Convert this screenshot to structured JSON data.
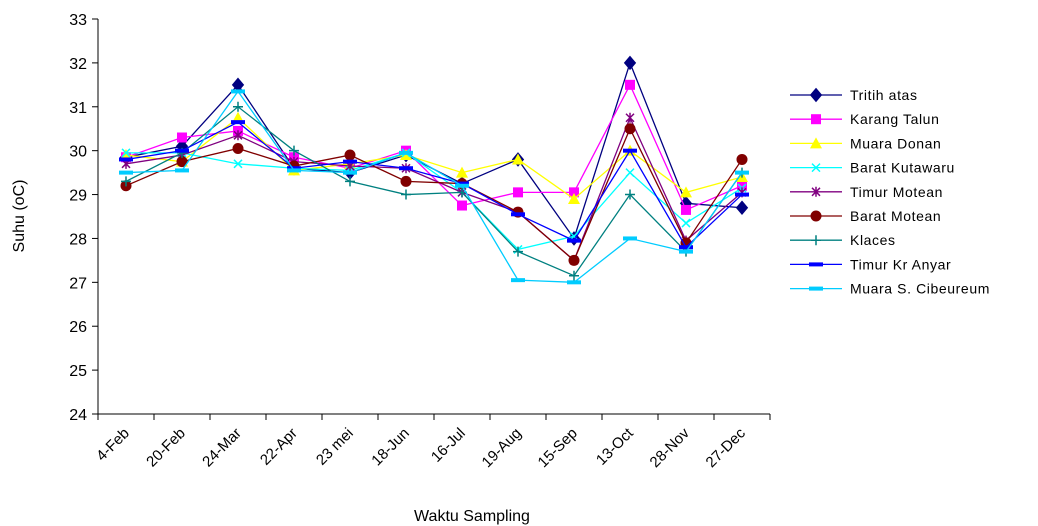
{
  "chart_data": {
    "type": "line",
    "title": "",
    "xlabel": "Waktu Sampling",
    "ylabel": "Suhu (oC)",
    "ylim": [
      24,
      33
    ],
    "yticks": [
      "24",
      "25",
      "26",
      "27",
      "28",
      "29",
      "30",
      "31",
      "32",
      "33"
    ],
    "categories": [
      "4-Feb",
      "20-Feb",
      "24-Mar",
      "22-Apr",
      "23 mei",
      "18-Jun",
      "16-Jul",
      "19-Aug",
      "15-Sep",
      "13-Oct",
      "28-Nov",
      "27-Dec"
    ],
    "legend_position": "right",
    "grid": false,
    "series": [
      {
        "name": "Tritih atas",
        "color": "#000080",
        "marker": "diamond",
        "values": [
          29.85,
          30.1,
          31.5,
          29.6,
          29.5,
          29.9,
          29.25,
          29.8,
          28.0,
          32.0,
          28.8,
          28.7
        ]
      },
      {
        "name": "Karang Talun",
        "color": "#ff00ff",
        "marker": "square",
        "values": [
          29.85,
          30.3,
          30.45,
          29.85,
          29.6,
          30.0,
          28.75,
          29.05,
          29.05,
          31.5,
          28.65,
          29.2
        ]
      },
      {
        "name": "Muara Donan",
        "color": "#ffff00",
        "marker": "triangle",
        "values": [
          29.9,
          29.75,
          30.75,
          29.55,
          29.7,
          29.9,
          29.5,
          29.8,
          28.9,
          30.0,
          29.05,
          29.4
        ]
      },
      {
        "name": "Barat Kutawaru",
        "color": "#00ffff",
        "marker": "x",
        "values": [
          29.95,
          29.95,
          29.7,
          29.6,
          29.55,
          29.95,
          29.05,
          27.75,
          28.05,
          29.5,
          28.35,
          29.15
        ]
      },
      {
        "name": "Timur Motean",
        "color": "#800080",
        "marker": "star",
        "values": [
          29.7,
          29.9,
          30.35,
          29.75,
          29.65,
          29.6,
          29.05,
          28.6,
          27.5,
          30.75,
          27.95,
          29.05
        ]
      },
      {
        "name": "Barat Motean",
        "color": "#800000",
        "marker": "circle",
        "values": [
          29.2,
          29.75,
          30.05,
          29.65,
          29.9,
          29.3,
          29.25,
          28.6,
          27.5,
          30.5,
          27.9,
          29.8
        ]
      },
      {
        "name": "Klaces",
        "color": "#008080",
        "marker": "plus",
        "values": [
          29.3,
          29.95,
          31.0,
          30.0,
          29.3,
          29.0,
          29.05,
          27.7,
          27.15,
          29.0,
          27.7,
          29.5
        ]
      },
      {
        "name": "Timur Kr Anyar",
        "color": "#0000ff",
        "marker": "dash",
        "values": [
          29.8,
          30.0,
          30.65,
          29.6,
          29.75,
          29.6,
          29.25,
          28.55,
          27.95,
          30.0,
          27.8,
          29.0
        ]
      },
      {
        "name": "Muara S. Cibeureum",
        "color": "#00ccff",
        "marker": "dash",
        "values": [
          29.5,
          29.55,
          31.35,
          29.55,
          29.5,
          29.95,
          29.2,
          27.05,
          27.0,
          28.0,
          27.7,
          29.5
        ]
      }
    ]
  }
}
